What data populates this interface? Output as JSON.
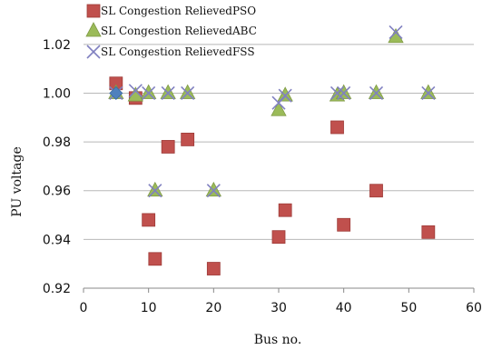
{
  "chart_data": {
    "type": "scatter",
    "title": "",
    "xlabel": "Bus no.",
    "ylabel": "PU voltage",
    "xlim": [
      0,
      60
    ],
    "ylim": [
      0.92,
      1.03
    ],
    "x_ticks": [
      0,
      10,
      20,
      30,
      40,
      50,
      60
    ],
    "y_ticks": [
      0.92,
      0.94,
      0.96,
      0.98,
      1.0,
      1.02
    ],
    "x_tick_labels": [
      "0",
      "10",
      "20",
      "30",
      "40",
      "50",
      "60"
    ],
    "y_tick_labels": [
      "0.92",
      "0.94",
      "0.96",
      "0.98",
      "1.00",
      "1.02"
    ],
    "grid": "horizontal",
    "legend_position": "top-left",
    "series": [
      {
        "name": "SL Congestion Relieved PSO",
        "marker": "square",
        "color": "#c0504d",
        "points": [
          {
            "x": 5,
            "y": 1.004
          },
          {
            "x": 8,
            "y": 0.998
          },
          {
            "x": 10,
            "y": 0.948
          },
          {
            "x": 11,
            "y": 0.932
          },
          {
            "x": 13,
            "y": 0.978
          },
          {
            "x": 16,
            "y": 0.981
          },
          {
            "x": 20,
            "y": 0.928
          },
          {
            "x": 30,
            "y": 0.941
          },
          {
            "x": 31,
            "y": 0.952
          },
          {
            "x": 39,
            "y": 0.986
          },
          {
            "x": 40,
            "y": 0.946
          },
          {
            "x": 45,
            "y": 0.96
          },
          {
            "x": 53,
            "y": 0.943
          }
        ]
      },
      {
        "name": "SL Congestion Relieved ABC",
        "marker": "triangle",
        "color": "#9bbb59",
        "points": [
          {
            "x": 5,
            "y": 1.0
          },
          {
            "x": 8,
            "y": 0.999
          },
          {
            "x": 10,
            "y": 1.0
          },
          {
            "x": 11,
            "y": 0.96
          },
          {
            "x": 13,
            "y": 1.0
          },
          {
            "x": 16,
            "y": 1.0
          },
          {
            "x": 20,
            "y": 0.96
          },
          {
            "x": 30,
            "y": 0.993
          },
          {
            "x": 31,
            "y": 0.999
          },
          {
            "x": 39,
            "y": 0.999
          },
          {
            "x": 40,
            "y": 1.0
          },
          {
            "x": 45,
            "y": 1.0
          },
          {
            "x": 48,
            "y": 1.023
          },
          {
            "x": 53,
            "y": 1.0
          }
        ]
      },
      {
        "name": "SL Congestion Relieved FSS",
        "marker": "cross",
        "color": "#8080c0",
        "points": [
          {
            "x": 5,
            "y": 1.0
          },
          {
            "x": 8,
            "y": 1.001
          },
          {
            "x": 10,
            "y": 1.0
          },
          {
            "x": 11,
            "y": 0.96
          },
          {
            "x": 13,
            "y": 1.0
          },
          {
            "x": 16,
            "y": 1.0
          },
          {
            "x": 20,
            "y": 0.96
          },
          {
            "x": 30,
            "y": 0.996
          },
          {
            "x": 31,
            "y": 0.999
          },
          {
            "x": 39,
            "y": 1.0
          },
          {
            "x": 40,
            "y": 1.0
          },
          {
            "x": 45,
            "y": 1.0
          },
          {
            "x": 48,
            "y": 1.025
          },
          {
            "x": 53,
            "y": 1.0
          }
        ]
      },
      {
        "name": "",
        "marker": "diamond",
        "color": "#4f81bd",
        "points": [
          {
            "x": 5,
            "y": 1.0
          }
        ]
      }
    ],
    "legend_entries": [
      "SL Congestion RelievedPSO",
      "SL Congestion RelievedABC",
      "SL Congestion RelievedFSS"
    ]
  }
}
